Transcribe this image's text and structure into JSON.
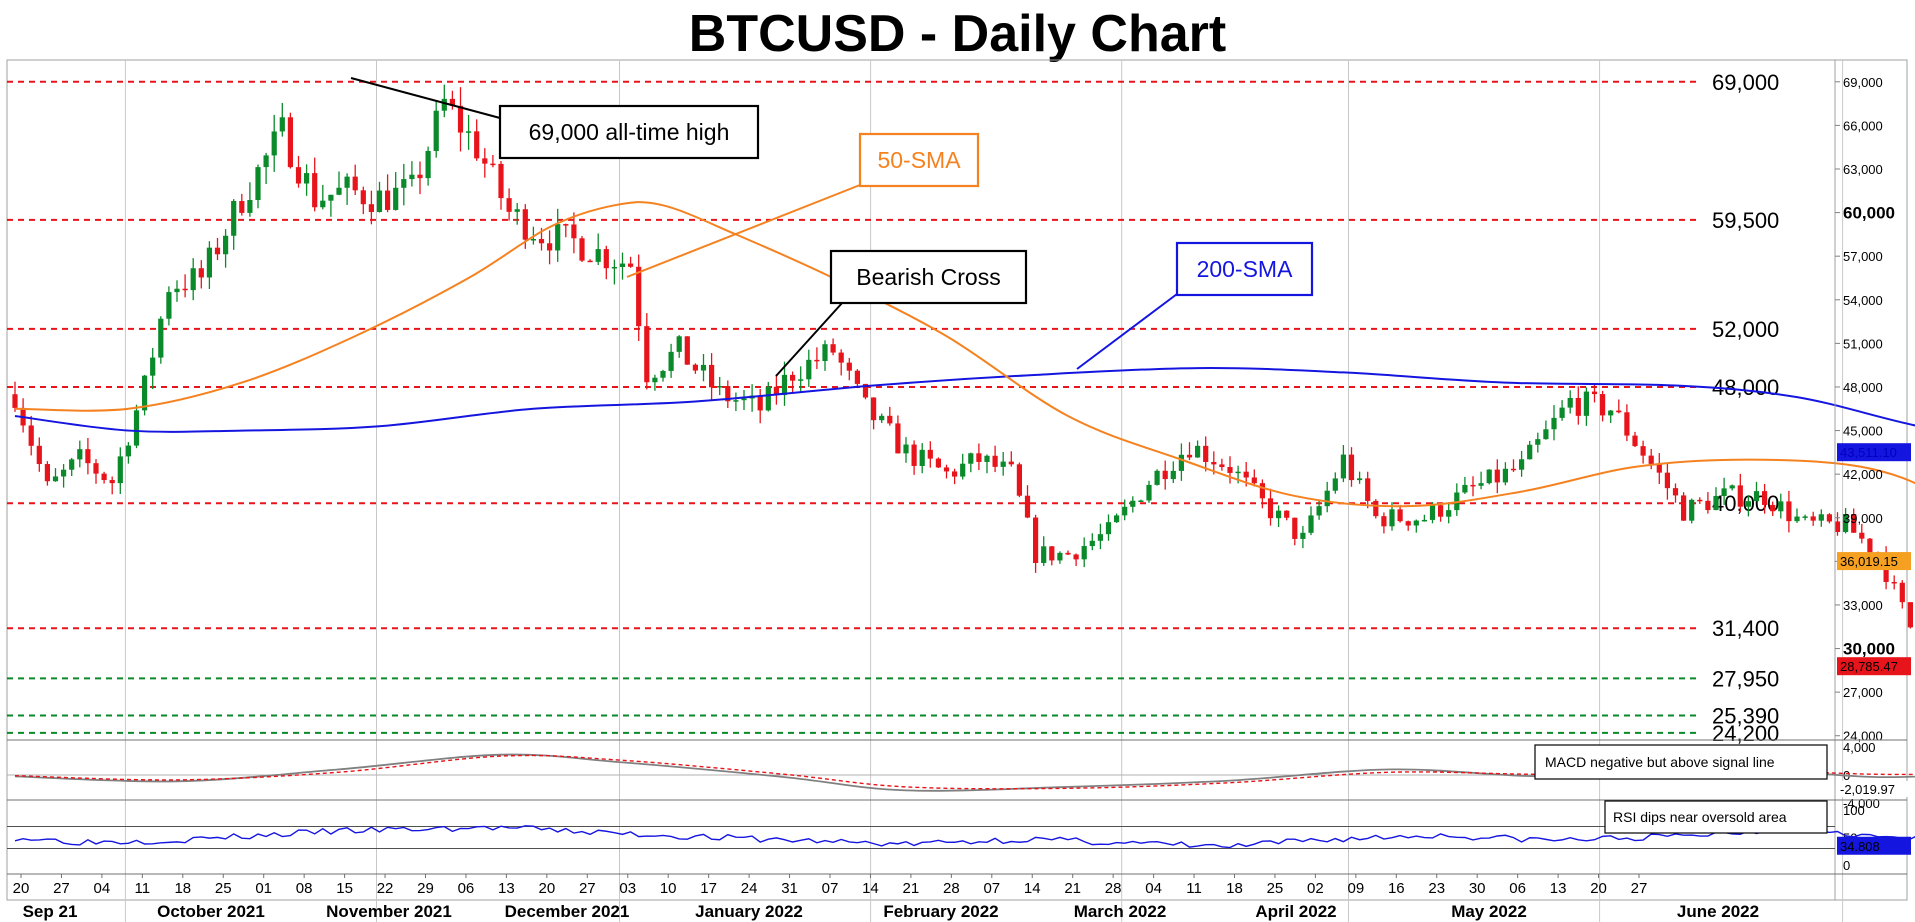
{
  "chart_data": {
    "title": "BTCUSD - Daily Chart",
    "type": "candlestick",
    "instrument": "BTCUSD",
    "timeframe": "Daily",
    "x_axis": {
      "day_ticks": [
        "20",
        "27",
        "04",
        "11",
        "18",
        "25",
        "01",
        "08",
        "15",
        "22",
        "29",
        "06",
        "13",
        "20",
        "27",
        "03",
        "10",
        "17",
        "24",
        "31",
        "07",
        "14",
        "21",
        "28",
        "07",
        "14",
        "21",
        "28",
        "04",
        "11",
        "18",
        "25",
        "02",
        "09",
        "16",
        "23",
        "30",
        "06",
        "13",
        "20",
        "27"
      ],
      "month_labels": [
        "Sep 21",
        "October 2021",
        "November 2021",
        "December 2021",
        "January 2022",
        "February 2022",
        "March 2022",
        "April 2022",
        "May 2022",
        "June 2022"
      ]
    },
    "y_axis": {
      "range": [
        23500,
        70500
      ],
      "tick_labels": [
        "69,000",
        "66,000",
        "63,000",
        "60,000",
        "57,000",
        "54,000",
        "51,000",
        "48,000",
        "45,000",
        "42,000",
        "39,000",
        "36,000",
        "33,000",
        "30,000",
        "27,000",
        "24,000"
      ],
      "bold_tick_labels": [
        "60,000",
        "30,000"
      ]
    },
    "levels": [
      {
        "label": "69,000",
        "value": 69000,
        "color": "#e8141b"
      },
      {
        "label": "59,500",
        "value": 59500,
        "color": "#e8141b"
      },
      {
        "label": "52,000",
        "value": 52000,
        "color": "#e8141b"
      },
      {
        "label": "48,000",
        "value": 48000,
        "color": "#e8141b"
      },
      {
        "label": "40,000",
        "value": 40000,
        "color": "#e8141b"
      },
      {
        "label": "31,400",
        "value": 31400,
        "color": "#e8141b"
      },
      {
        "label": "27,950",
        "value": 27950,
        "color": "#0a8a2a"
      },
      {
        "label": "25,390",
        "value": 25390,
        "color": "#0a8a2a"
      },
      {
        "label": "24,200",
        "value": 24200,
        "color": "#0a8a2a"
      }
    ],
    "price_anchors": [
      {
        "date": "2021-09-17",
        "value": 47500
      },
      {
        "date": "2021-09-21",
        "value": 41000
      },
      {
        "date": "2021-09-25",
        "value": 43000
      },
      {
        "date": "2021-09-29",
        "value": 41500
      },
      {
        "date": "2021-10-03",
        "value": 48000
      },
      {
        "date": "2021-10-06",
        "value": 55000
      },
      {
        "date": "2021-10-10",
        "value": 55500
      },
      {
        "date": "2021-10-15",
        "value": 61000
      },
      {
        "date": "2021-10-20",
        "value": 65500
      },
      {
        "date": "2021-10-24",
        "value": 61000
      },
      {
        "date": "2021-10-28",
        "value": 61500
      },
      {
        "date": "2021-11-01",
        "value": 61000
      },
      {
        "date": "2021-11-05",
        "value": 61500
      },
      {
        "date": "2021-11-09",
        "value": 67500
      },
      {
        "date": "2021-11-13",
        "value": 64500
      },
      {
        "date": "2021-11-17",
        "value": 60000
      },
      {
        "date": "2021-11-21",
        "value": 58500
      },
      {
        "date": "2021-11-25",
        "value": 58000
      },
      {
        "date": "2021-11-29",
        "value": 57000
      },
      {
        "date": "2021-12-02",
        "value": 56500
      },
      {
        "date": "2021-12-04",
        "value": 49000
      },
      {
        "date": "2021-12-08",
        "value": 50500
      },
      {
        "date": "2021-12-13",
        "value": 47500
      },
      {
        "date": "2021-12-18",
        "value": 46500
      },
      {
        "date": "2021-12-22",
        "value": 49000
      },
      {
        "date": "2021-12-27",
        "value": 50500
      },
      {
        "date": "2021-12-31",
        "value": 46500
      },
      {
        "date": "2022-01-05",
        "value": 43500
      },
      {
        "date": "2022-01-10",
        "value": 42000
      },
      {
        "date": "2022-01-14",
        "value": 43000
      },
      {
        "date": "2022-01-18",
        "value": 42000
      },
      {
        "date": "2022-01-21",
        "value": 36500
      },
      {
        "date": "2022-01-25",
        "value": 36500
      },
      {
        "date": "2022-01-30",
        "value": 38000
      },
      {
        "date": "2022-02-04",
        "value": 41500
      },
      {
        "date": "2022-02-09",
        "value": 44000
      },
      {
        "date": "2022-02-14",
        "value": 42500
      },
      {
        "date": "2022-02-18",
        "value": 40000
      },
      {
        "date": "2022-02-23",
        "value": 37500
      },
      {
        "date": "2022-02-28",
        "value": 43000
      },
      {
        "date": "2022-03-04",
        "value": 39000
      },
      {
        "date": "2022-03-10",
        "value": 39000
      },
      {
        "date": "2022-03-16",
        "value": 41000
      },
      {
        "date": "2022-03-22",
        "value": 42500
      },
      {
        "date": "2022-03-28",
        "value": 47000
      },
      {
        "date": "2022-04-02",
        "value": 46500
      },
      {
        "date": "2022-04-06",
        "value": 43500
      },
      {
        "date": "2022-04-11",
        "value": 39500
      },
      {
        "date": "2022-04-16",
        "value": 40500
      },
      {
        "date": "2022-04-21",
        "value": 40500
      },
      {
        "date": "2022-04-26",
        "value": 38500
      },
      {
        "date": "2022-05-01",
        "value": 38500
      },
      {
        "date": "2022-05-05",
        "value": 36500
      },
      {
        "date": "2022-05-09",
        "value": 31500
      },
      {
        "date": "2022-05-12",
        "value": 28800
      },
      {
        "date": "2022-05-15",
        "value": 30000
      },
      {
        "date": "2022-05-20",
        "value": 29500
      },
      {
        "date": "2022-05-25",
        "value": 29500
      },
      {
        "date": "2022-05-27",
        "value": 28785
      }
    ],
    "sma50": [
      {
        "date": "2021-09-17",
        "value": 46500
      },
      {
        "date": "2021-10-01",
        "value": 46500
      },
      {
        "date": "2021-10-15",
        "value": 48300
      },
      {
        "date": "2021-10-29",
        "value": 51500
      },
      {
        "date": "2021-11-12",
        "value": 55500
      },
      {
        "date": "2021-11-22",
        "value": 59000
      },
      {
        "date": "2021-11-30",
        "value": 60500
      },
      {
        "date": "2021-12-06",
        "value": 60500
      },
      {
        "date": "2021-12-15",
        "value": 58500
      },
      {
        "date": "2021-12-27",
        "value": 55500
      },
      {
        "date": "2022-01-10",
        "value": 51500
      },
      {
        "date": "2022-01-25",
        "value": 46000
      },
      {
        "date": "2022-02-08",
        "value": 43000
      },
      {
        "date": "2022-02-22",
        "value": 40500
      },
      {
        "date": "2022-03-08",
        "value": 39800
      },
      {
        "date": "2022-03-22",
        "value": 40800
      },
      {
        "date": "2022-04-05",
        "value": 42500
      },
      {
        "date": "2022-04-19",
        "value": 43000
      },
      {
        "date": "2022-05-03",
        "value": 42500
      },
      {
        "date": "2022-05-13",
        "value": 40500
      },
      {
        "date": "2022-05-27",
        "value": 36019
      }
    ],
    "sma200": [
      {
        "date": "2021-09-17",
        "value": 46000
      },
      {
        "date": "2021-10-01",
        "value": 45000
      },
      {
        "date": "2021-10-15",
        "value": 45000
      },
      {
        "date": "2021-11-01",
        "value": 45300
      },
      {
        "date": "2021-11-20",
        "value": 46500
      },
      {
        "date": "2021-12-10",
        "value": 47000
      },
      {
        "date": "2022-01-01",
        "value": 48100
      },
      {
        "date": "2022-01-20",
        "value": 48800
      },
      {
        "date": "2022-02-10",
        "value": 49300
      },
      {
        "date": "2022-02-28",
        "value": 49000
      },
      {
        "date": "2022-03-20",
        "value": 48300
      },
      {
        "date": "2022-04-10",
        "value": 48100
      },
      {
        "date": "2022-04-25",
        "value": 47300
      },
      {
        "date": "2022-05-10",
        "value": 45300
      },
      {
        "date": "2022-05-27",
        "value": 43511
      }
    ],
    "price_tags": [
      {
        "label": "43,511.10",
        "value": 43511,
        "color": "#1515e0",
        "text_color": "#0000c0"
      },
      {
        "label": "36,019.15",
        "value": 36019,
        "color": "#f5a020",
        "text_color": "#000000"
      },
      {
        "label": "28,785.47",
        "value": 28785,
        "color": "#e8141b",
        "text_color": "#000000"
      }
    ],
    "annotations": [
      {
        "text": "69,000 all-time high",
        "border": "#000000",
        "text_color": "#000000"
      },
      {
        "text": "50-SMA",
        "border": "#f58220",
        "text_color": "#f58220"
      },
      {
        "text": "Bearish Cross",
        "border": "#000000",
        "text_color": "#000000"
      },
      {
        "text": "200-SMA",
        "border": "#1515e0",
        "text_color": "#1515e0"
      }
    ],
    "macd": {
      "ticks": [
        "4,000",
        "0",
        "-4,000"
      ],
      "last_value": "-2,019.97",
      "note": "MACD negative but above signal line"
    },
    "rsi": {
      "ticks": [
        "100",
        "50",
        "0"
      ],
      "last_value": "34.808",
      "note": "RSI dips near oversold area"
    },
    "colors": {
      "up_candle": "#0a8a2a",
      "down_candle": "#e8141b",
      "sma50": "#f58220",
      "sma200": "#1515e0",
      "resistance": "#e8141b",
      "support": "#0a8a2a"
    }
  }
}
